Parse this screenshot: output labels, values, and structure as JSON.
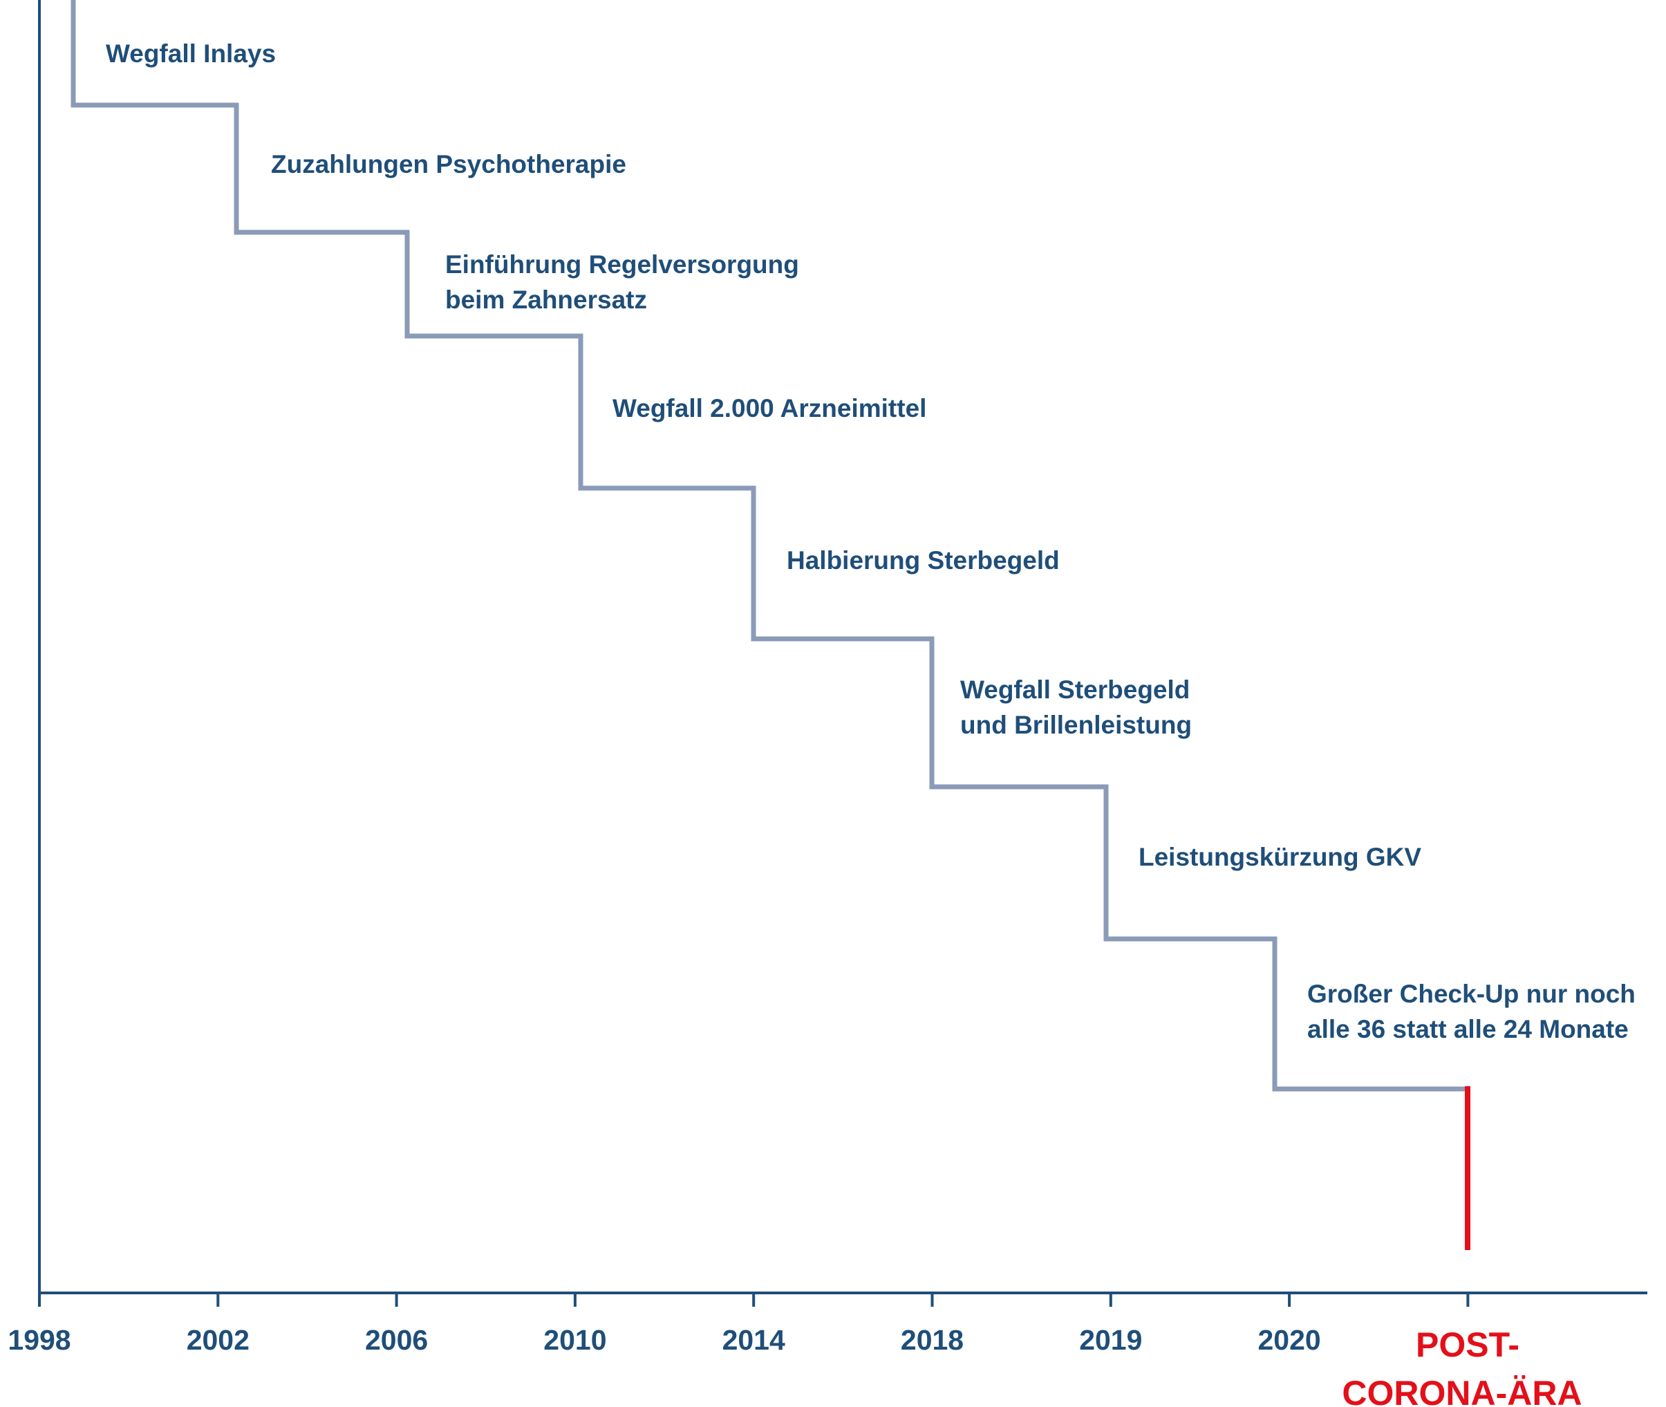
{
  "chart_data": {
    "type": "line",
    "title": "",
    "xlabel": "",
    "ylabel": "",
    "categories": [
      "1998",
      "2002",
      "2006",
      "2010",
      "2014",
      "2018",
      "2019",
      "2020"
    ],
    "end_label": [
      "POST-",
      "CORONA-ÄRA"
    ],
    "steps": [
      {
        "label": [
          "Wegfall Inlays"
        ]
      },
      {
        "label": [
          "Zuzahlungen Psychotherapie"
        ]
      },
      {
        "label": [
          "Einführung Regelversorgung",
          "beim Zahnersatz"
        ]
      },
      {
        "label": [
          "Wegfall 2.000 Arzneimittel"
        ]
      },
      {
        "label": [
          "Halbierung Sterbegeld"
        ]
      },
      {
        "label": [
          "Wegfall Sterbegeld",
          "und Brillenleistung"
        ]
      },
      {
        "label": [
          "Leistungskürzung GKV"
        ]
      },
      {
        "label": [
          "Großer Check-Up nur noch",
          "alle 36 statt alle 24 Monate"
        ]
      }
    ],
    "grid": false,
    "legend": "none",
    "colors": {
      "axis": "#1f4e79",
      "step_line": "#8a9bb8",
      "text": "#1f4e79",
      "end_marker": "#e3101a"
    }
  }
}
